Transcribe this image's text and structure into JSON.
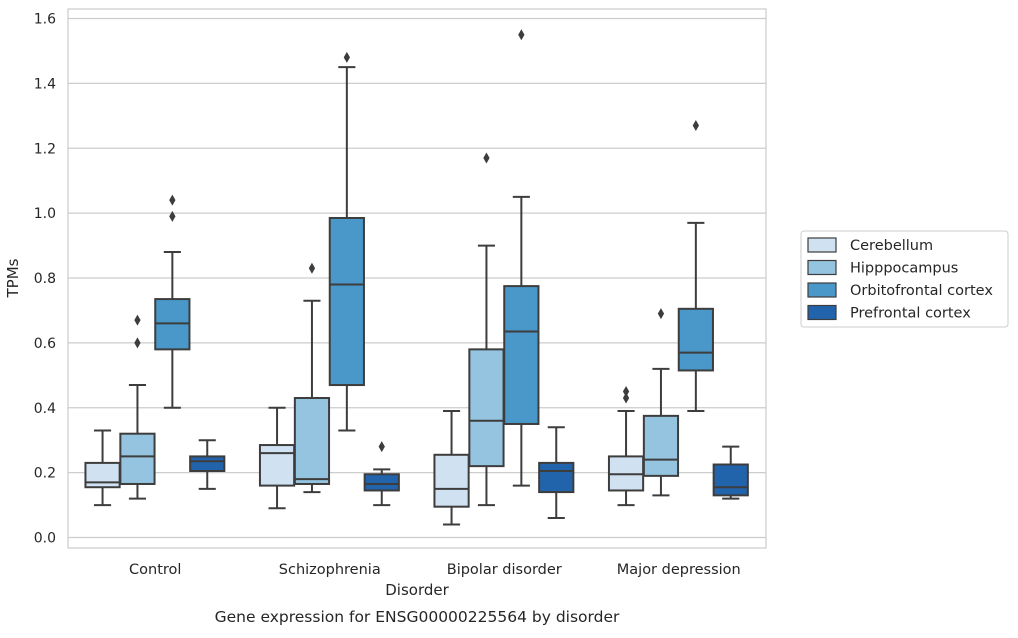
{
  "chart_data": {
    "type": "boxplot",
    "title": "",
    "caption": "Gene expression for ENSG00000225564 by disorder",
    "xlabel": "Disorder",
    "ylabel": "TPMs",
    "ylim": [
      -0.03,
      1.625
    ],
    "yticks": [
      0.0,
      0.2,
      0.4,
      0.6,
      0.8,
      1.0,
      1.2,
      1.4,
      1.6
    ],
    "ytick_labels": [
      "0.0",
      "0.2",
      "0.4",
      "0.6",
      "0.8",
      "1.0",
      "1.2",
      "1.4",
      "1.6"
    ],
    "grid": "horizontal",
    "legend_position": "right",
    "categories": [
      "Control",
      "Schizophrenia",
      "Bipolar disorder",
      "Major depression"
    ],
    "series": [
      {
        "name": "Cerebellum",
        "color": "#d0e1f2",
        "boxes": [
          {
            "whislo": 0.1,
            "q1": 0.155,
            "med": 0.17,
            "q3": 0.23,
            "whishi": 0.33,
            "fliers": []
          },
          {
            "whislo": 0.09,
            "q1": 0.16,
            "med": 0.26,
            "q3": 0.285,
            "whishi": 0.4,
            "fliers": []
          },
          {
            "whislo": 0.04,
            "q1": 0.095,
            "med": 0.15,
            "q3": 0.255,
            "whishi": 0.39,
            "fliers": []
          },
          {
            "whislo": 0.1,
            "q1": 0.145,
            "med": 0.195,
            "q3": 0.25,
            "whishi": 0.39,
            "fliers": [
              0.43,
              0.45
            ]
          }
        ]
      },
      {
        "name": "Hipppocampus",
        "color": "#94c4df",
        "boxes": [
          {
            "whislo": 0.12,
            "q1": 0.165,
            "med": 0.25,
            "q3": 0.32,
            "whishi": 0.47,
            "fliers": [
              0.6,
              0.67
            ]
          },
          {
            "whislo": 0.14,
            "q1": 0.165,
            "med": 0.18,
            "q3": 0.43,
            "whishi": 0.73,
            "fliers": [
              0.83
            ]
          },
          {
            "whislo": 0.1,
            "q1": 0.22,
            "med": 0.36,
            "q3": 0.58,
            "whishi": 0.9,
            "fliers": [
              1.17
            ]
          },
          {
            "whislo": 0.13,
            "q1": 0.19,
            "med": 0.24,
            "q3": 0.375,
            "whishi": 0.52,
            "fliers": [
              0.69
            ]
          }
        ]
      },
      {
        "name": "Orbitofrontal cortex",
        "color": "#4a98c9",
        "boxes": [
          {
            "whislo": 0.4,
            "q1": 0.58,
            "med": 0.66,
            "q3": 0.735,
            "whishi": 0.88,
            "fliers": [
              0.99,
              1.04
            ]
          },
          {
            "whislo": 0.33,
            "q1": 0.47,
            "med": 0.78,
            "q3": 0.985,
            "whishi": 1.45,
            "fliers": [
              1.48
            ]
          },
          {
            "whislo": 0.16,
            "q1": 0.35,
            "med": 0.635,
            "q3": 0.775,
            "whishi": 1.05,
            "fliers": [
              1.55
            ]
          },
          {
            "whislo": 0.39,
            "q1": 0.515,
            "med": 0.57,
            "q3": 0.705,
            "whishi": 0.97,
            "fliers": [
              1.27
            ]
          }
        ]
      },
      {
        "name": "Prefrontal cortex",
        "color": "#2164ab",
        "boxes": [
          {
            "whislo": 0.15,
            "q1": 0.205,
            "med": 0.235,
            "q3": 0.25,
            "whishi": 0.3,
            "fliers": []
          },
          {
            "whislo": 0.1,
            "q1": 0.145,
            "med": 0.165,
            "q3": 0.195,
            "whishi": 0.21,
            "fliers": [
              0.28
            ]
          },
          {
            "whislo": 0.06,
            "q1": 0.14,
            "med": 0.205,
            "q3": 0.23,
            "whishi": 0.34,
            "fliers": []
          },
          {
            "whislo": 0.12,
            "q1": 0.13,
            "med": 0.155,
            "q3": 0.225,
            "whishi": 0.28,
            "fliers": []
          }
        ]
      }
    ]
  }
}
